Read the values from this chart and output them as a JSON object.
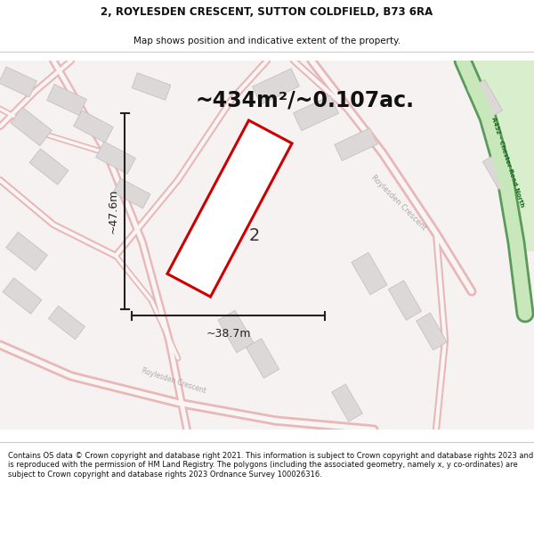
{
  "title_line1": "2, ROYLESDEN CRESCENT, SUTTON COLDFIELD, B73 6RA",
  "title_line2": "Map shows position and indicative extent of the property.",
  "area_text": "~434m²/~0.107ac.",
  "dim_width": "~38.7m",
  "dim_height": "~47.6m",
  "property_number": "2",
  "footer_text": "Contains OS data © Crown copyright and database right 2021. This information is subject to Crown copyright and database rights 2023 and is reproduced with the permission of HM Land Registry. The polygons (including the associated geometry, namely x, y co-ordinates) are subject to Crown copyright and database rights 2023 Ordnance Survey 100026316.",
  "map_bg": "#f7f2f2",
  "road_outer": "#e8b8b8",
  "road_inner": "#f9f5f5",
  "bld_fill": "#ddd8d8",
  "bld_edge": "#c8c0c0",
  "prop_color": "#cc0000",
  "prop_fill": "#ffffff",
  "green_fill": "#c8e8bc",
  "green_edge": "#5a9a5a",
  "green_label": "#1a6a1a",
  "road_label": "#aaaaaa",
  "dim_color": "#222222",
  "title_bg": "#ffffff",
  "footer_bg": "#ffffff",
  "sep_color": "#cccccc"
}
